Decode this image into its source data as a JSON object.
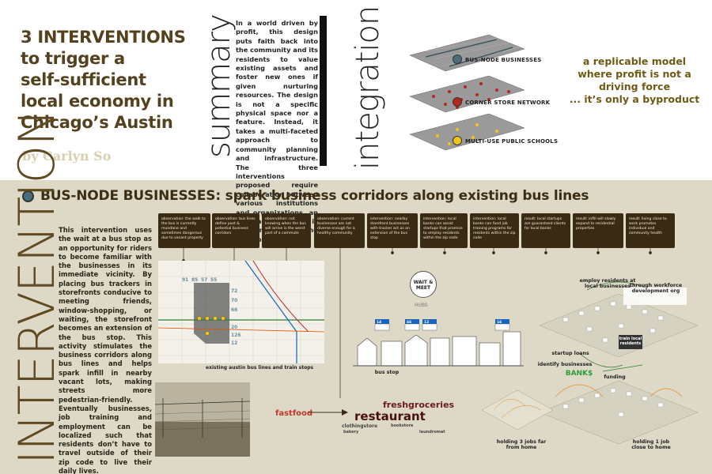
{
  "header": {
    "title": "3 INTERVENTIONS to trigger a self-sufficient local economy in Chicago’s Austin",
    "title_lines": [
      "3 INTERVENTIONS",
      "to trigger a",
      "self-sufficient",
      "local economy in",
      "Chicago’s Austin"
    ],
    "byline": "by Carlyn So"
  },
  "summary": {
    "heading": "summary",
    "text": "In a world driven by profit, this design puts faith back into the community and its residents to value existing assets and foster new ones if given nurturing resources. The design is not a specific physical space nor a feature. Instead, it takes a multi-faceted approach to community planning and infrastructure. The three interventions proposed require collaboration between various institutions and organizations, an approach that is inherently holistic and interconnected."
  },
  "integration": {
    "heading": "integration",
    "layers": [
      {
        "label": "BUS-NODE BUSINESSES",
        "color": "#4a6e7a"
      },
      {
        "label": "CORNER STORE NETWORK",
        "color": "#b3281e"
      },
      {
        "label": "MULTI-USE PUBLIC SCHOOLS",
        "color": "#f0c419"
      }
    ],
    "tagline_lines": [
      "a replicable model",
      "where profit is not a",
      "driving force",
      "... it’s only a byproduct"
    ]
  },
  "intervention": {
    "heading": "INTERVENTION",
    "band_title": "BUS-NODE BUSINESSES: spark business corridors along existing bus lines",
    "body": "This intervention uses the wait at a bus stop as an opportunity for riders to become familiar with the businesses in its immediate vicinity. By placing bus trackers in storefronts conducive to meeting friends, window-shopping, or waiting, the storefront becomes an extension of the bus stop. This activity stimulates the business corridors along bus lines and helps spark infill in nearby vacant lots, making streets more pedestrian-friendly. Eventually businesses, job training and employment can be localized such that residents don’t have to travel outside of their zip code to live their daily lives.",
    "callouts": [
      "observation: the walk to the bus is currently mundane and sometimes dangerous due to vacant property",
      "observation: bus lines define past & potential business corridors",
      "observation: not knowing when the bus will arrive is the worst part of a commute",
      "observation: current businesses are not diverse enough for a healthy community",
      "intervention: nearby storefront businesses with tracker act as an extension of the bus stop",
      "intervention: local banks can assist startups that promise to employ residents within the zip code",
      "intervention: local banks can fund job training programs for residents within the zip code",
      "result: local startups are guaranteed clients for local banks",
      "result: infill will slowly expand to residential properties",
      "result: living close to work promotes individual and community health"
    ],
    "map_caption": "existing austin bus lines and train stops",
    "route_numbers_top": [
      "91",
      "85",
      "57",
      "55"
    ],
    "route_numbers_side": [
      "72",
      "70",
      "66",
      "20",
      "126",
      "12"
    ],
    "wait_badge": "WAIT & MEET",
    "hubs_label": "HUBS",
    "bus_stop_label": "bus stop",
    "tracker_labels": [
      "14",
      "66",
      "12",
      "16"
    ],
    "diagram_labels": {
      "employ": "employ residents at local businesses",
      "workforce": "through workforce development org",
      "startup": "startup loans",
      "train": "train local residents",
      "identify": "identify businesses",
      "banks": "BANK$",
      "funding": "funding",
      "three_jobs": "holding 3 jobs far from home",
      "one_job": "holding 1 job close to home"
    },
    "wordcloud": [
      {
        "text": "freshgroceries",
        "color": "#6b1b1b",
        "size": 11
      },
      {
        "text": "fastfood",
        "color": "#c0392b",
        "size": 10
      },
      {
        "text": "restaurant",
        "color": "#4a1010",
        "size": 15
      },
      {
        "text": "clothingstore",
        "color": "#444444",
        "size": 6
      },
      {
        "text": "bookstore",
        "color": "#444444",
        "size": 5
      },
      {
        "text": "bakery",
        "color": "#444444",
        "size": 5
      },
      {
        "text": "laundromat",
        "color": "#444444",
        "size": 5
      }
    ]
  }
}
